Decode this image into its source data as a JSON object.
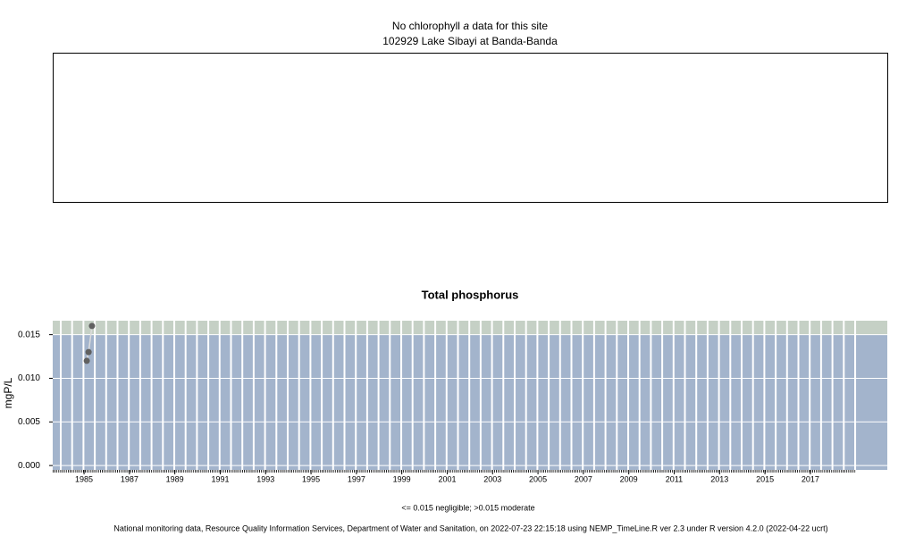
{
  "site_panel": {
    "title_parts": [
      "No chlorophyll",
      "a",
      "data for this site"
    ],
    "subtitle": "102929 Lake Sibayi at Banda-Banda"
  },
  "chart_data": {
    "type": "line",
    "title": "Total phosphorus",
    "ylabel": "mgP/L",
    "x": [
      1985.12,
      1985.2,
      1985.35
    ],
    "values": [
      0.012,
      0.013,
      0.016
    ],
    "color": "#606060",
    "line_color": "#dddddd",
    "xlim": [
      1983.62,
      2020.39
    ],
    "xticks": [
      1985,
      1987,
      1989,
      1991,
      1993,
      1995,
      1997,
      1999,
      2001,
      2003,
      2005,
      2007,
      2009,
      2011,
      2013,
      2015,
      2017
    ],
    "ylim": [
      -0.0005,
      0.0166
    ],
    "yticks": [
      {
        "value": 0,
        "label": "0.000"
      },
      0.005,
      {
        "value": 0.01,
        "label": "0.010"
      },
      0.015
    ],
    "threshold": 0.015,
    "band_colors": [
      "#a3b4cc",
      "#c5d0c5"
    ],
    "grid": true
  },
  "legend_note": "<= 0.015 negligible; >0.015 moderate",
  "caption": "National monitoring data, Resource Quality Information Services, Department of Water and Sanitation, on 2022-07-23 22:15:18 using NEMP_TimeLine.R ver 2.3 under R version 4.2.0 (2022-04-22 ucrt)"
}
